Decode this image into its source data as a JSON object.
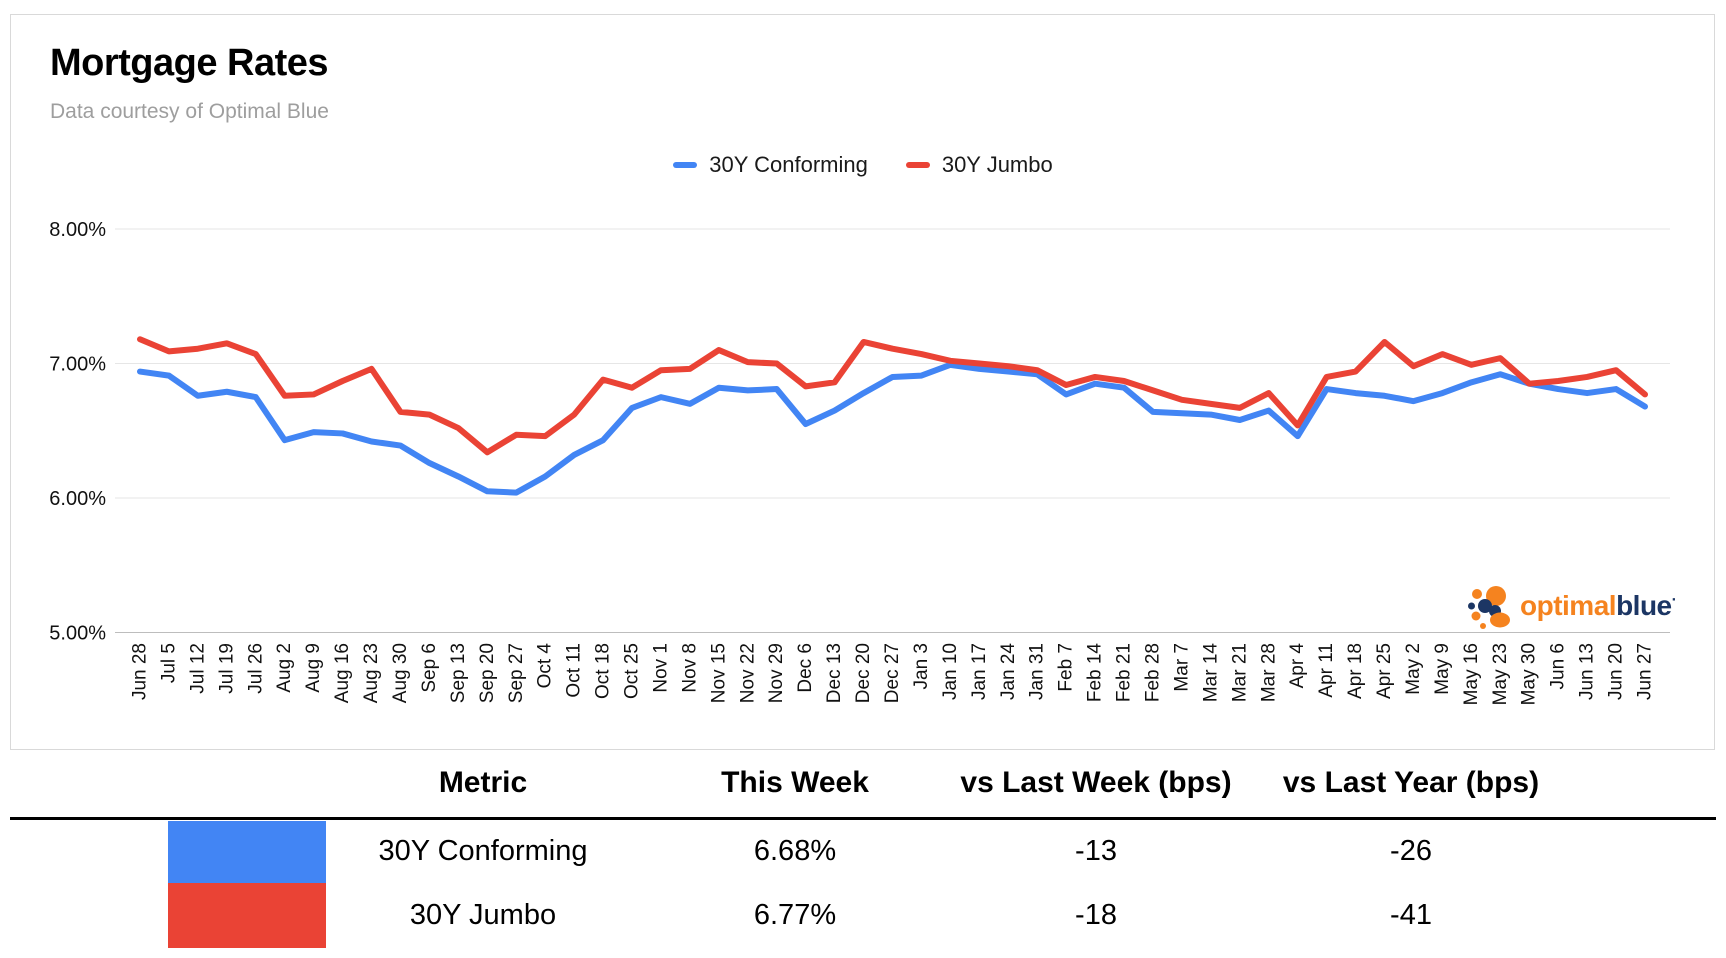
{
  "header": {
    "title": "Mortgage Rates",
    "subtitle": "Data courtesy of Optimal Blue"
  },
  "legend": [
    {
      "label": "30Y Conforming",
      "color": "#4285F4"
    },
    {
      "label": "30Y Jumbo",
      "color": "#EA4335"
    }
  ],
  "chart_data": {
    "type": "line",
    "title": "Mortgage Rates",
    "xlabel": "",
    "ylabel": "",
    "ylim": [
      5.0,
      8.0
    ],
    "grid": true,
    "legend_position": "top",
    "y_ticks": [
      {
        "value": 8,
        "label": "8.00%"
      },
      {
        "value": 7,
        "label": "7.00%"
      },
      {
        "value": 6,
        "label": "6.00%"
      },
      {
        "value": 5,
        "label": "5.00%"
      }
    ],
    "categories": [
      "Jun 28",
      "Jul 5",
      "Jul 12",
      "Jul 19",
      "Jul 26",
      "Aug 2",
      "Aug 9",
      "Aug 16",
      "Aug 23",
      "Aug 30",
      "Sep 6",
      "Sep 13",
      "Sep 20",
      "Sep 27",
      "Oct 4",
      "Oct 11",
      "Oct 18",
      "Oct 25",
      "Nov 1",
      "Nov 8",
      "Nov 15",
      "Nov 22",
      "Nov 29",
      "Dec 6",
      "Dec 13",
      "Dec 20",
      "Dec 27",
      "Jan 3",
      "Jan 10",
      "Jan 17",
      "Jan 24",
      "Jan 31",
      "Feb 7",
      "Feb 14",
      "Feb 21",
      "Feb 28",
      "Mar 7",
      "Mar 14",
      "Mar 21",
      "Mar 28",
      "Apr 4",
      "Apr 11",
      "Apr 18",
      "Apr 25",
      "May 2",
      "May 9",
      "May 16",
      "May 23",
      "May 30",
      "Jun 6",
      "Jun 13",
      "Jun 20",
      "Jun 27"
    ],
    "series": [
      {
        "name": "30Y Conforming",
        "color": "#4285F4",
        "values": [
          6.94,
          6.91,
          6.76,
          6.79,
          6.75,
          6.43,
          6.49,
          6.48,
          6.42,
          6.39,
          6.26,
          6.16,
          6.05,
          6.04,
          6.16,
          6.32,
          6.43,
          6.67,
          6.75,
          6.7,
          6.82,
          6.8,
          6.81,
          6.55,
          6.65,
          6.78,
          6.9,
          6.91,
          6.99,
          6.96,
          6.94,
          6.92,
          6.77,
          6.85,
          6.82,
          6.64,
          6.63,
          6.62,
          6.58,
          6.65,
          6.46,
          6.81,
          6.78,
          6.76,
          6.72,
          6.78,
          6.86,
          6.92,
          6.85,
          6.81,
          6.78,
          6.81,
          6.68
        ]
      },
      {
        "name": "30Y Jumbo",
        "color": "#EA4335",
        "values": [
          7.18,
          7.09,
          7.11,
          7.15,
          7.07,
          6.76,
          6.77,
          6.87,
          6.96,
          6.64,
          6.62,
          6.52,
          6.34,
          6.47,
          6.46,
          6.62,
          6.88,
          6.82,
          6.95,
          6.96,
          7.1,
          7.01,
          7.0,
          6.83,
          6.86,
          7.16,
          7.11,
          7.07,
          7.02,
          7.0,
          6.98,
          6.95,
          6.84,
          6.9,
          6.87,
          6.8,
          6.73,
          6.7,
          6.67,
          6.78,
          6.54,
          6.9,
          6.94,
          7.16,
          6.98,
          7.07,
          6.99,
          7.04,
          6.85,
          6.87,
          6.9,
          6.95,
          6.77
        ]
      }
    ]
  },
  "logo": {
    "text_optimal": "optimal",
    "text_blue": "blue",
    "mark": "·",
    "orange": "#f5831f",
    "navy": "#1c3664"
  },
  "table": {
    "headers": [
      "Metric",
      "This Week",
      "vs Last Week (bps)",
      "vs Last Year (bps)"
    ],
    "rows": [
      {
        "swatch": "#4285F4",
        "metric": "30Y Conforming",
        "this_week": "6.68%",
        "vs_last_week": "-13",
        "vs_last_year": "-26"
      },
      {
        "swatch": "#EA4335",
        "metric": "30Y Jumbo",
        "this_week": "6.77%",
        "vs_last_week": "-18",
        "vs_last_year": "-41"
      }
    ]
  }
}
